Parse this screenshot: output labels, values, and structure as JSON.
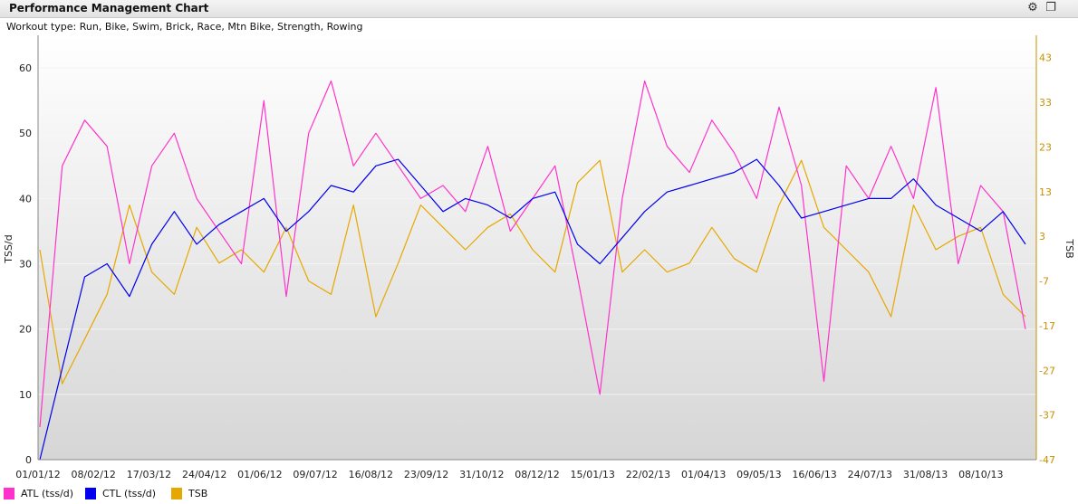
{
  "header": {
    "title": "Performance Management Chart",
    "settings_icon": "gear-icon",
    "restore_icon": "restore-window-icon"
  },
  "subtitle": "Workout type: Run, Bike, Swim, Brick, Race, Mtn Bike, Strength, Rowing",
  "colors": {
    "atl": "#ff33cc",
    "ctl": "#0000ee",
    "tsb": "#e6a800",
    "axis_right": "#c89000"
  },
  "legend": [
    {
      "label": "ATL (tss/d)",
      "color": "#ff33cc"
    },
    {
      "label": "CTL (tss/d)",
      "color": "#0000ee"
    },
    {
      "label": "TSB",
      "color": "#e6a800"
    }
  ],
  "chart_data": {
    "type": "line",
    "title": "Performance Management Chart",
    "xlabel": "",
    "ylabel": "TSS/d",
    "y2label": "TSB",
    "ylim": [
      0,
      65
    ],
    "y2lim": [
      -47,
      48
    ],
    "yticks": [
      0,
      10,
      20,
      30,
      40,
      50,
      60
    ],
    "y2ticks": [
      -47,
      -37,
      -27,
      -17,
      -7,
      3,
      13,
      23,
      33,
      43
    ],
    "xticks": [
      "01/01/12",
      "08/02/12",
      "17/03/12",
      "24/04/12",
      "01/06/12",
      "09/07/12",
      "16/08/12",
      "23/09/12",
      "31/10/12",
      "08/12/12",
      "15/01/13",
      "22/02/13",
      "01/04/13",
      "09/05/13",
      "16/06/13",
      "24/07/13",
      "31/08/13",
      "08/10/13"
    ],
    "x": [
      "01/01/12",
      "15/01/12",
      "01/02/12",
      "15/02/12",
      "01/03/12",
      "15/03/12",
      "01/04/12",
      "15/04/12",
      "01/05/12",
      "15/05/12",
      "01/06/12",
      "15/06/12",
      "01/07/12",
      "15/07/12",
      "01/08/12",
      "15/08/12",
      "01/09/12",
      "15/09/12",
      "01/10/12",
      "15/10/12",
      "01/11/12",
      "15/11/12",
      "01/12/12",
      "15/12/12",
      "01/01/13",
      "15/01/13",
      "01/02/13",
      "15/02/13",
      "01/03/13",
      "15/03/13",
      "01/04/13",
      "15/04/13",
      "01/05/13",
      "15/05/13",
      "01/06/13",
      "15/06/13",
      "01/07/13",
      "15/07/13",
      "01/08/13",
      "15/08/13",
      "01/09/13",
      "15/09/13",
      "01/10/13",
      "15/10/13",
      "01/11/13"
    ],
    "series": [
      {
        "name": "ATL (tss/d)",
        "axis": "left",
        "values": [
          5,
          45,
          52,
          48,
          30,
          45,
          50,
          40,
          35,
          30,
          55,
          25,
          50,
          58,
          45,
          50,
          45,
          40,
          42,
          38,
          48,
          35,
          40,
          45,
          28,
          10,
          40,
          58,
          48,
          44,
          52,
          47,
          40,
          54,
          42,
          12,
          45,
          40,
          48,
          40,
          57,
          30,
          42,
          38,
          20
        ]
      },
      {
        "name": "CTL (tss/d)",
        "axis": "left",
        "values": [
          0,
          14,
          28,
          30,
          25,
          33,
          38,
          33,
          36,
          38,
          40,
          35,
          38,
          42,
          41,
          45,
          46,
          42,
          38,
          40,
          39,
          37,
          40,
          41,
          33,
          30,
          34,
          38,
          41,
          42,
          43,
          44,
          46,
          42,
          37,
          38,
          39,
          40,
          40,
          43,
          39,
          37,
          35,
          38,
          33
        ]
      },
      {
        "name": "TSB",
        "axis": "right",
        "values": [
          0,
          -30,
          -20,
          -10,
          10,
          -5,
          -10,
          5,
          -3,
          0,
          -5,
          5,
          -7,
          -10,
          10,
          -15,
          -3,
          10,
          5,
          0,
          5,
          8,
          0,
          -5,
          15,
          20,
          -5,
          0,
          -5,
          -3,
          5,
          -2,
          -5,
          10,
          20,
          5,
          0,
          -5,
          -15,
          10,
          0,
          3,
          5,
          -10,
          -15
        ]
      }
    ]
  }
}
